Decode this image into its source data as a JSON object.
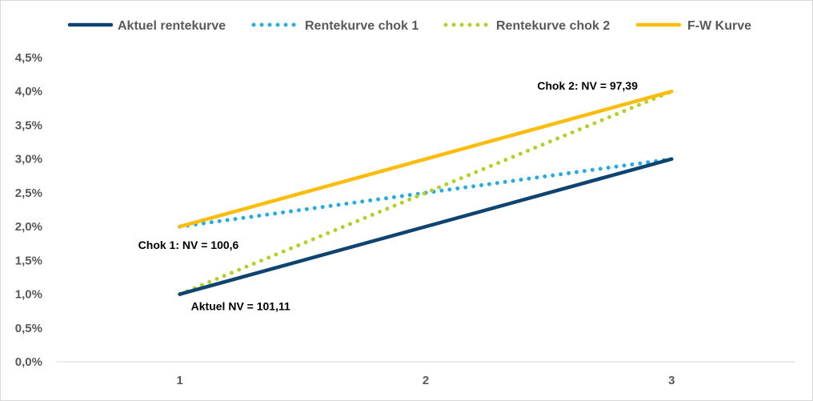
{
  "chart_data": {
    "type": "line",
    "x": [
      1,
      2,
      3
    ],
    "xlim": [
      0.5,
      3.5
    ],
    "ylim": [
      0,
      4.5
    ],
    "y_tick_labels": [
      "0,0%",
      "0,5%",
      "1,0%",
      "1,5%",
      "2,0%",
      "2,5%",
      "3,0%",
      "3,5%",
      "4,0%",
      "4,5%"
    ],
    "x_tick_labels": [
      "1",
      "2",
      "3"
    ],
    "grid": false,
    "legend_position": "top",
    "series": [
      {
        "name": "Aktuel rentekurve",
        "values": [
          1.0,
          2.0,
          3.0
        ],
        "color": "#0f4470",
        "style": "solid"
      },
      {
        "name": "Rentekurve chok 1",
        "values": [
          2.0,
          2.5,
          3.0
        ],
        "color": "#29abe2",
        "style": "dotted"
      },
      {
        "name": "Rentekurve chok 2",
        "values": [
          1.0,
          2.5,
          4.0
        ],
        "color": "#b5cf2f",
        "style": "dotted"
      },
      {
        "name": "F-W Kurve",
        "values": [
          2.0,
          3.0,
          4.0
        ],
        "color": "#fbbc0a",
        "style": "solid"
      }
    ],
    "annotations": [
      {
        "text": "Chok 2: NV = 97,39",
        "x": 3,
        "y": 4.0
      },
      {
        "text": "Chok 1: NV = 100,6",
        "x": 1,
        "y": 2.0
      },
      {
        "text": "Aktuel NV = 101,11",
        "x": 1,
        "y": 1.0
      }
    ]
  }
}
